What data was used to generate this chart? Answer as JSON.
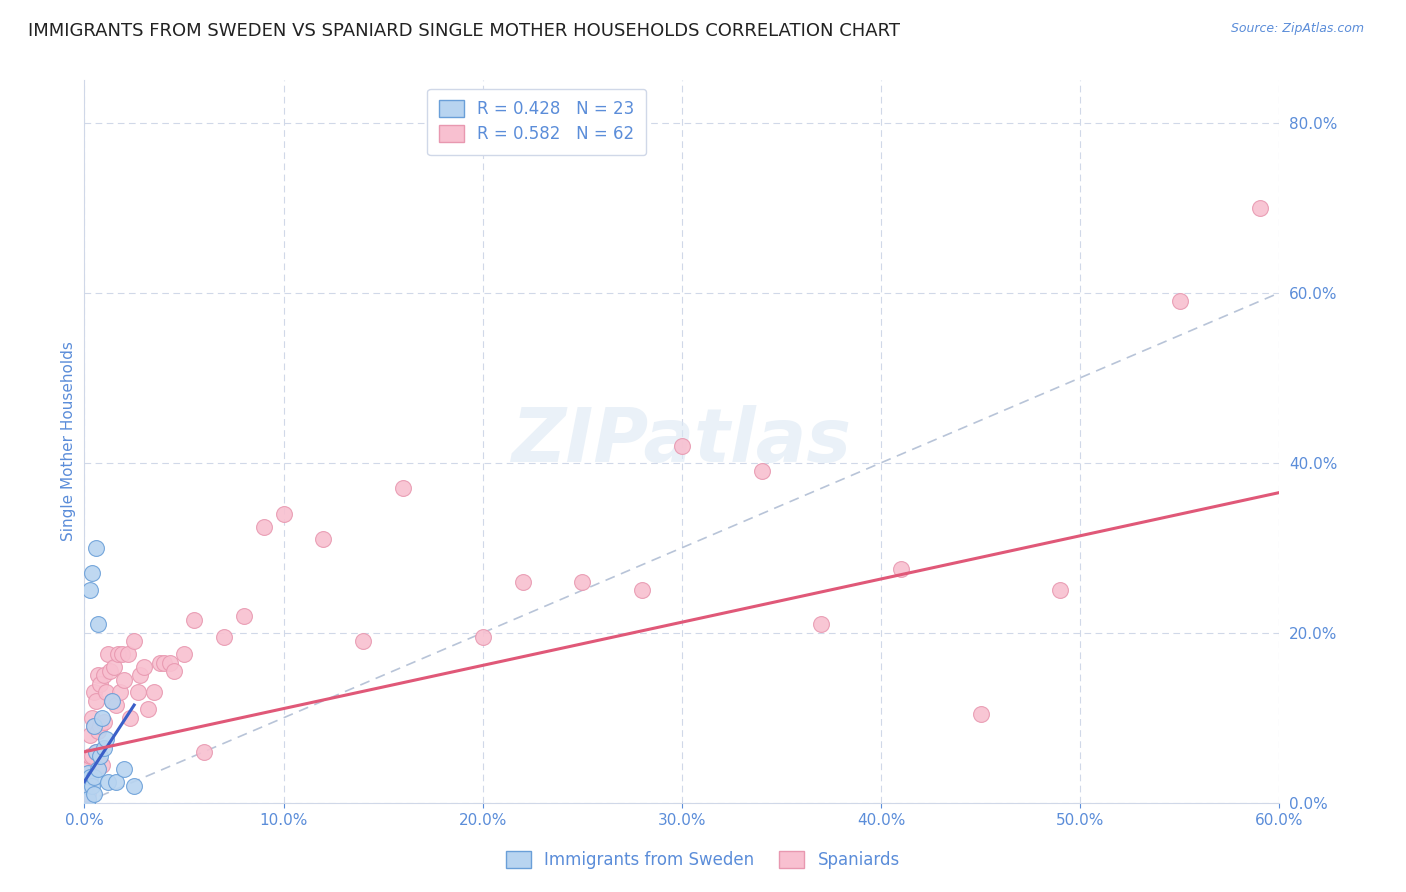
{
  "title": "IMMIGRANTS FROM SWEDEN VS SPANIARD SINGLE MOTHER HOUSEHOLDS CORRELATION CHART",
  "source": "Source: ZipAtlas.com",
  "ylabel_label": "Single Mother Households",
  "xlim": [
    0.0,
    0.6
  ],
  "ylim": [
    0.0,
    0.85
  ],
  "xticks": [
    0.0,
    0.1,
    0.2,
    0.3,
    0.4,
    0.5,
    0.6
  ],
  "yticks": [
    0.0,
    0.2,
    0.4,
    0.6,
    0.8
  ],
  "legend_entries": [
    {
      "label": "R = 0.428   N = 23",
      "color": "#a8c8f0"
    },
    {
      "label": "R = 0.582   N = 62",
      "color": "#f8b8cc"
    }
  ],
  "watermark_text": "ZIPatlas",
  "tick_color": "#5b8dd9",
  "grid_color": "#d0d8e8",
  "title_fontsize": 13,
  "axis_tick_fontsize": 11,
  "ylabel_fontsize": 11,
  "sweden_x": [
    0.001,
    0.002,
    0.002,
    0.003,
    0.003,
    0.004,
    0.004,
    0.005,
    0.005,
    0.005,
    0.006,
    0.006,
    0.007,
    0.007,
    0.008,
    0.009,
    0.01,
    0.011,
    0.012,
    0.014,
    0.016,
    0.02,
    0.025
  ],
  "sweden_y": [
    0.02,
    0.035,
    0.005,
    0.25,
    0.03,
    0.27,
    0.02,
    0.09,
    0.01,
    0.03,
    0.3,
    0.06,
    0.21,
    0.04,
    0.055,
    0.1,
    0.065,
    0.075,
    0.025,
    0.12,
    0.025,
    0.04,
    0.02
  ],
  "spain_x": [
    0.001,
    0.002,
    0.002,
    0.003,
    0.003,
    0.004,
    0.004,
    0.005,
    0.005,
    0.006,
    0.006,
    0.007,
    0.007,
    0.008,
    0.008,
    0.009,
    0.01,
    0.01,
    0.011,
    0.012,
    0.013,
    0.014,
    0.015,
    0.016,
    0.017,
    0.018,
    0.019,
    0.02,
    0.022,
    0.023,
    0.025,
    0.027,
    0.028,
    0.03,
    0.032,
    0.035,
    0.038,
    0.04,
    0.043,
    0.045,
    0.05,
    0.055,
    0.06,
    0.07,
    0.08,
    0.09,
    0.1,
    0.12,
    0.14,
    0.16,
    0.2,
    0.22,
    0.25,
    0.28,
    0.3,
    0.34,
    0.37,
    0.41,
    0.45,
    0.49,
    0.55,
    0.59
  ],
  "spain_y": [
    0.02,
    0.04,
    0.01,
    0.055,
    0.08,
    0.055,
    0.1,
    0.09,
    0.13,
    0.06,
    0.12,
    0.085,
    0.15,
    0.09,
    0.14,
    0.045,
    0.095,
    0.15,
    0.13,
    0.175,
    0.155,
    0.12,
    0.16,
    0.115,
    0.175,
    0.13,
    0.175,
    0.145,
    0.175,
    0.1,
    0.19,
    0.13,
    0.15,
    0.16,
    0.11,
    0.13,
    0.165,
    0.165,
    0.165,
    0.155,
    0.175,
    0.215,
    0.06,
    0.195,
    0.22,
    0.325,
    0.34,
    0.31,
    0.19,
    0.37,
    0.195,
    0.26,
    0.26,
    0.25,
    0.42,
    0.39,
    0.21,
    0.275,
    0.105,
    0.25,
    0.59,
    0.7
  ],
  "sweden_line_x": [
    0.0,
    0.025
  ],
  "sweden_line_y": [
    0.025,
    0.115
  ],
  "sweden_line_color": "#3a5fc8",
  "spain_line_x": [
    0.0,
    0.6
  ],
  "spain_line_y": [
    0.06,
    0.365
  ],
  "spain_line_color": "#e05878",
  "diag_line_color": "#b8c4d8",
  "sweden_scatter_color": "#b8d4f0",
  "sweden_scatter_edge": "#6a9fd8",
  "spain_scatter_color": "#f8c0d0",
  "spain_scatter_edge": "#e898b0"
}
